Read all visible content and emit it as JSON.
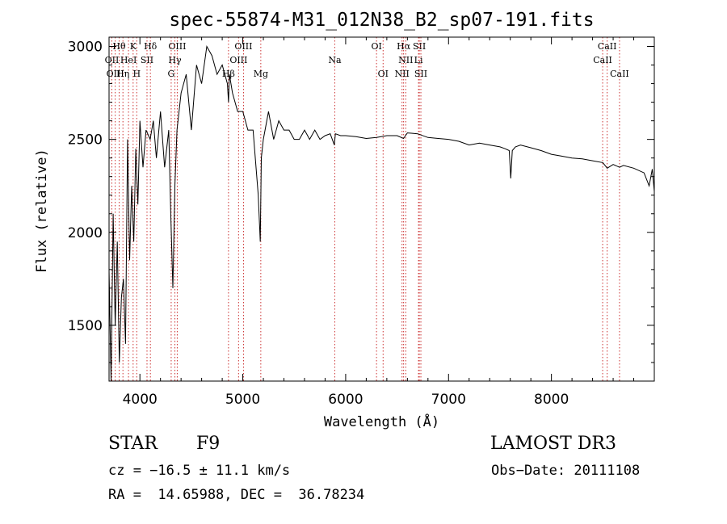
{
  "chart_data": {
    "type": "line",
    "title": "spec-55874-M31_012N38_B2_sp07-191.fits",
    "xlabel": "Wavelength (Å)",
    "ylabel": "Flux (relative)",
    "xlim": [
      3700,
      9000
    ],
    "ylim": [
      1200,
      3050
    ],
    "xticks": [
      4000,
      5000,
      6000,
      7000,
      8000
    ],
    "yticks": [
      1500,
      2000,
      2500,
      3000
    ],
    "xtick_labels": [
      "4000",
      "5000",
      "6000",
      "7000",
      "8000"
    ],
    "ytick_labels": [
      "1500",
      "2000",
      "2500",
      "3000"
    ],
    "series": [
      {
        "name": "flux",
        "x": [
          3700,
          3720,
          3740,
          3760,
          3780,
          3800,
          3820,
          3840,
          3860,
          3880,
          3900,
          3920,
          3940,
          3960,
          3980,
          4000,
          4030,
          4060,
          4100,
          4130,
          4160,
          4200,
          4240,
          4280,
          4300,
          4320,
          4340,
          4360,
          4400,
          4450,
          4500,
          4550,
          4600,
          4650,
          4700,
          4750,
          4800,
          4850,
          4861,
          4870,
          4900,
          4950,
          5000,
          5050,
          5100,
          5150,
          5170,
          5180,
          5200,
          5250,
          5300,
          5350,
          5400,
          5450,
          5500,
          5550,
          5600,
          5650,
          5700,
          5750,
          5800,
          5850,
          5890,
          5900,
          5950,
          6000,
          6100,
          6200,
          6300,
          6400,
          6500,
          6563,
          6600,
          6700,
          6800,
          6900,
          7000,
          7100,
          7200,
          7300,
          7400,
          7500,
          7550,
          7590,
          7605,
          7620,
          7650,
          7700,
          7800,
          7900,
          8000,
          8100,
          8200,
          8300,
          8400,
          8500,
          8542,
          8600,
          8662,
          8700,
          8800,
          8900,
          8950,
          8980,
          9000
        ],
        "y": [
          1800,
          1200,
          2100,
          1500,
          1950,
          1300,
          1650,
          1750,
          1400,
          2500,
          1850,
          2250,
          1950,
          2450,
          2150,
          2600,
          2350,
          2550,
          2500,
          2600,
          2400,
          2650,
          2350,
          2550,
          2100,
          1700,
          2250,
          2550,
          2750,
          2850,
          2550,
          2900,
          2800,
          3000,
          2950,
          2850,
          2900,
          2800,
          2700,
          2850,
          2750,
          2650,
          2650,
          2550,
          2550,
          2200,
          1950,
          2400,
          2500,
          2650,
          2500,
          2600,
          2550,
          2550,
          2500,
          2500,
          2550,
          2500,
          2550,
          2500,
          2520,
          2530,
          2470,
          2530,
          2520,
          2520,
          2515,
          2505,
          2510,
          2520,
          2520,
          2505,
          2535,
          2530,
          2510,
          2505,
          2500,
          2490,
          2470,
          2480,
          2470,
          2460,
          2450,
          2440,
          2290,
          2440,
          2460,
          2470,
          2455,
          2440,
          2420,
          2410,
          2400,
          2395,
          2385,
          2375,
          2345,
          2365,
          2350,
          2360,
          2345,
          2320,
          2250,
          2340,
          2220
        ]
      }
    ],
    "lines": [
      {
        "label": "Hθ",
        "wl": 3798,
        "row": 1
      },
      {
        "label": "OII",
        "wl": 3727,
        "row": 2
      },
      {
        "label": "OIII",
        "wl": 3760,
        "row": 3
      },
      {
        "label": "K",
        "wl": 3934,
        "row": 1
      },
      {
        "label": "HeI",
        "wl": 3889,
        "row": 2
      },
      {
        "label": "Hη",
        "wl": 3835,
        "row": 3
      },
      {
        "label": "SII",
        "wl": 4069,
        "row": 2
      },
      {
        "label": "H",
        "wl": 3969,
        "row": 3
      },
      {
        "label": "Hδ",
        "wl": 4102,
        "row": 1
      },
      {
        "label": "OIII",
        "wl": 4363,
        "row": 1
      },
      {
        "label": "Hγ",
        "wl": 4340,
        "row": 2
      },
      {
        "label": "G",
        "wl": 4304,
        "row": 3
      },
      {
        "label": "OIII",
        "wl": 5007,
        "row": 1
      },
      {
        "label": "OIII",
        "wl": 4959,
        "row": 2
      },
      {
        "label": "Hβ",
        "wl": 4861,
        "row": 3
      },
      {
        "label": "Mg",
        "wl": 5175,
        "row": 3
      },
      {
        "label": "Na",
        "wl": 5894,
        "row": 2
      },
      {
        "label": "OI",
        "wl": 6300,
        "row": 1
      },
      {
        "label": "OI",
        "wl": 6364,
        "row": 3
      },
      {
        "label": "Hα",
        "wl": 6563,
        "row": 1
      },
      {
        "label": "SII",
        "wl": 6716,
        "row": 1
      },
      {
        "label": "NII",
        "wl": 6584,
        "row": 2
      },
      {
        "label": "Li",
        "wl": 6708,
        "row": 2
      },
      {
        "label": "NII",
        "wl": 6548,
        "row": 3
      },
      {
        "label": "SII",
        "wl": 6731,
        "row": 3
      },
      {
        "label": "CaII",
        "wl": 8542,
        "row": 1
      },
      {
        "label": "CaII",
        "wl": 8498,
        "row": 2
      },
      {
        "label": "CaII",
        "wl": 8662,
        "row": 3
      }
    ]
  },
  "info": {
    "class_label": "STAR",
    "subclass": "F9",
    "survey": "LAMOST DR3",
    "redshift": "cz = −16.5 ± 11.1 km/s",
    "obs_date": "Obs−Date: 20111108",
    "coords": "RA =  14.65988, DEC =  36.78234"
  },
  "colors": {
    "lines": "#cc3333",
    "spectrum": "#000000"
  }
}
